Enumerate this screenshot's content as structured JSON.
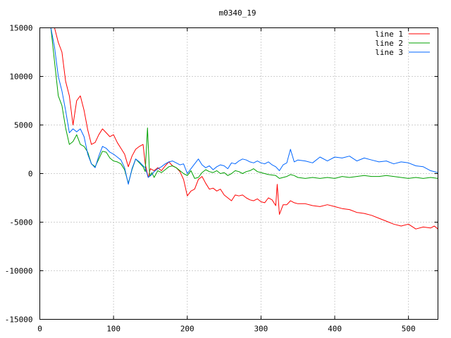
{
  "chart_data": {
    "type": "line",
    "title": "m0340_19",
    "xlabel": "",
    "ylabel": "",
    "xlim": [
      0,
      540
    ],
    "ylim": [
      -15000,
      15000
    ],
    "xticks": [
      0,
      100,
      200,
      300,
      400,
      500
    ],
    "yticks": [
      -15000,
      -10000,
      -5000,
      0,
      5000,
      10000,
      15000
    ],
    "grid": true,
    "legend_position": "top-right",
    "series": [
      {
        "name": "line 1",
        "color": "#ff0000",
        "points": [
          [
            15,
            15000
          ],
          [
            20,
            15000
          ],
          [
            25,
            13500
          ],
          [
            30,
            12500
          ],
          [
            35,
            9500
          ],
          [
            40,
            8000
          ],
          [
            45,
            5000
          ],
          [
            50,
            7500
          ],
          [
            55,
            8000
          ],
          [
            60,
            6500
          ],
          [
            65,
            4500
          ],
          [
            70,
            3000
          ],
          [
            75,
            3200
          ],
          [
            80,
            4000
          ],
          [
            85,
            4600
          ],
          [
            90,
            4200
          ],
          [
            95,
            3800
          ],
          [
            100,
            4000
          ],
          [
            105,
            3200
          ],
          [
            110,
            2600
          ],
          [
            115,
            2000
          ],
          [
            120,
            700
          ],
          [
            125,
            1800
          ],
          [
            130,
            2500
          ],
          [
            135,
            2800
          ],
          [
            140,
            3000
          ],
          [
            143,
            1000
          ],
          [
            147,
            -400
          ],
          [
            150,
            500
          ],
          [
            155,
            300
          ],
          [
            160,
            600
          ],
          [
            165,
            300
          ],
          [
            170,
            800
          ],
          [
            175,
            1200
          ],
          [
            180,
            800
          ],
          [
            185,
            600
          ],
          [
            190,
            200
          ],
          [
            195,
            -600
          ],
          [
            200,
            -2300
          ],
          [
            205,
            -1800
          ],
          [
            210,
            -1600
          ],
          [
            215,
            -600
          ],
          [
            220,
            -300
          ],
          [
            225,
            -1000
          ],
          [
            230,
            -1600
          ],
          [
            235,
            -1500
          ],
          [
            240,
            -1800
          ],
          [
            245,
            -1600
          ],
          [
            250,
            -2200
          ],
          [
            255,
            -2500
          ],
          [
            260,
            -2800
          ],
          [
            265,
            -2200
          ],
          [
            270,
            -2300
          ],
          [
            275,
            -2200
          ],
          [
            280,
            -2500
          ],
          [
            285,
            -2700
          ],
          [
            290,
            -2800
          ],
          [
            295,
            -2600
          ],
          [
            300,
            -2900
          ],
          [
            305,
            -3000
          ],
          [
            310,
            -2500
          ],
          [
            315,
            -2700
          ],
          [
            320,
            -3300
          ],
          [
            322,
            -1100
          ],
          [
            325,
            -4200
          ],
          [
            330,
            -3200
          ],
          [
            335,
            -3200
          ],
          [
            340,
            -2800
          ],
          [
            345,
            -3000
          ],
          [
            350,
            -3100
          ],
          [
            360,
            -3100
          ],
          [
            370,
            -3300
          ],
          [
            380,
            -3400
          ],
          [
            390,
            -3200
          ],
          [
            400,
            -3400
          ],
          [
            410,
            -3600
          ],
          [
            420,
            -3700
          ],
          [
            430,
            -4000
          ],
          [
            440,
            -4100
          ],
          [
            450,
            -4300
          ],
          [
            460,
            -4600
          ],
          [
            470,
            -4900
          ],
          [
            480,
            -5200
          ],
          [
            490,
            -5400
          ],
          [
            500,
            -5200
          ],
          [
            510,
            -5700
          ],
          [
            520,
            -5500
          ],
          [
            530,
            -5600
          ],
          [
            535,
            -5400
          ],
          [
            540,
            -5700
          ]
        ]
      },
      {
        "name": "line 2",
        "color": "#00a000",
        "points": [
          [
            15,
            15000
          ],
          [
            20,
            11500
          ],
          [
            25,
            8000
          ],
          [
            30,
            7000
          ],
          [
            35,
            4700
          ],
          [
            40,
            3000
          ],
          [
            45,
            3300
          ],
          [
            50,
            4000
          ],
          [
            55,
            3000
          ],
          [
            60,
            2800
          ],
          [
            65,
            2200
          ],
          [
            70,
            1000
          ],
          [
            75,
            700
          ],
          [
            80,
            1500
          ],
          [
            85,
            2300
          ],
          [
            90,
            2200
          ],
          [
            95,
            1600
          ],
          [
            100,
            1300
          ],
          [
            105,
            1200
          ],
          [
            110,
            1000
          ],
          [
            115,
            400
          ],
          [
            120,
            -1000
          ],
          [
            125,
            400
          ],
          [
            130,
            1500
          ],
          [
            135,
            1100
          ],
          [
            140,
            700
          ],
          [
            143,
            200
          ],
          [
            146,
            4700
          ],
          [
            149,
            -300
          ],
          [
            152,
            100
          ],
          [
            155,
            -400
          ],
          [
            160,
            300
          ],
          [
            165,
            100
          ],
          [
            170,
            400
          ],
          [
            175,
            700
          ],
          [
            180,
            800
          ],
          [
            185,
            600
          ],
          [
            190,
            300
          ],
          [
            195,
            0
          ],
          [
            200,
            -200
          ],
          [
            205,
            300
          ],
          [
            210,
            -500
          ],
          [
            215,
            -400
          ],
          [
            220,
            100
          ],
          [
            225,
            400
          ],
          [
            230,
            200
          ],
          [
            235,
            100
          ],
          [
            240,
            300
          ],
          [
            245,
            0
          ],
          [
            250,
            100
          ],
          [
            255,
            -200
          ],
          [
            260,
            0
          ],
          [
            265,
            300
          ],
          [
            270,
            200
          ],
          [
            275,
            0
          ],
          [
            280,
            200
          ],
          [
            285,
            300
          ],
          [
            290,
            500
          ],
          [
            295,
            200
          ],
          [
            300,
            100
          ],
          [
            310,
            -100
          ],
          [
            320,
            -200
          ],
          [
            325,
            -500
          ],
          [
            330,
            -400
          ],
          [
            335,
            -300
          ],
          [
            340,
            -100
          ],
          [
            345,
            -200
          ],
          [
            350,
            -400
          ],
          [
            360,
            -500
          ],
          [
            370,
            -400
          ],
          [
            380,
            -500
          ],
          [
            390,
            -400
          ],
          [
            400,
            -500
          ],
          [
            410,
            -300
          ],
          [
            420,
            -400
          ],
          [
            430,
            -300
          ],
          [
            440,
            -200
          ],
          [
            450,
            -300
          ],
          [
            460,
            -300
          ],
          [
            470,
            -200
          ],
          [
            480,
            -300
          ],
          [
            490,
            -400
          ],
          [
            500,
            -500
          ],
          [
            510,
            -400
          ],
          [
            520,
            -500
          ],
          [
            530,
            -400
          ],
          [
            540,
            -500
          ]
        ]
      },
      {
        "name": "line 3",
        "color": "#0066ff",
        "points": [
          [
            15,
            15000
          ],
          [
            20,
            13000
          ],
          [
            25,
            10000
          ],
          [
            30,
            8500
          ],
          [
            35,
            6500
          ],
          [
            40,
            4200
          ],
          [
            45,
            4600
          ],
          [
            50,
            4300
          ],
          [
            55,
            4600
          ],
          [
            60,
            3800
          ],
          [
            65,
            2000
          ],
          [
            70,
            1000
          ],
          [
            75,
            600
          ],
          [
            80,
            1800
          ],
          [
            85,
            2800
          ],
          [
            90,
            2600
          ],
          [
            95,
            2200
          ],
          [
            100,
            2000
          ],
          [
            105,
            1700
          ],
          [
            110,
            1400
          ],
          [
            115,
            600
          ],
          [
            120,
            -1100
          ],
          [
            125,
            500
          ],
          [
            130,
            1500
          ],
          [
            135,
            1200
          ],
          [
            140,
            800
          ],
          [
            143,
            600
          ],
          [
            147,
            -400
          ],
          [
            152,
            -100
          ],
          [
            155,
            200
          ],
          [
            160,
            500
          ],
          [
            165,
            700
          ],
          [
            170,
            1000
          ],
          [
            175,
            1200
          ],
          [
            180,
            1300
          ],
          [
            185,
            1100
          ],
          [
            190,
            900
          ],
          [
            195,
            1000
          ],
          [
            200,
            0
          ],
          [
            205,
            500
          ],
          [
            210,
            1000
          ],
          [
            215,
            1500
          ],
          [
            220,
            900
          ],
          [
            225,
            600
          ],
          [
            230,
            800
          ],
          [
            235,
            400
          ],
          [
            240,
            700
          ],
          [
            245,
            900
          ],
          [
            250,
            800
          ],
          [
            255,
            500
          ],
          [
            260,
            1100
          ],
          [
            265,
            1000
          ],
          [
            270,
            1300
          ],
          [
            275,
            1500
          ],
          [
            280,
            1400
          ],
          [
            285,
            1200
          ],
          [
            290,
            1100
          ],
          [
            295,
            1300
          ],
          [
            300,
            1100
          ],
          [
            305,
            1000
          ],
          [
            310,
            1200
          ],
          [
            315,
            900
          ],
          [
            320,
            700
          ],
          [
            325,
            300
          ],
          [
            330,
            900
          ],
          [
            335,
            1100
          ],
          [
            340,
            2500
          ],
          [
            345,
            1200
          ],
          [
            350,
            1400
          ],
          [
            360,
            1300
          ],
          [
            370,
            1100
          ],
          [
            380,
            1700
          ],
          [
            390,
            1300
          ],
          [
            400,
            1700
          ],
          [
            410,
            1600
          ],
          [
            420,
            1800
          ],
          [
            430,
            1300
          ],
          [
            440,
            1600
          ],
          [
            450,
            1400
          ],
          [
            460,
            1200
          ],
          [
            470,
            1300
          ],
          [
            480,
            1000
          ],
          [
            490,
            1200
          ],
          [
            500,
            1100
          ],
          [
            510,
            800
          ],
          [
            520,
            700
          ],
          [
            530,
            300
          ],
          [
            540,
            100
          ]
        ]
      }
    ]
  }
}
